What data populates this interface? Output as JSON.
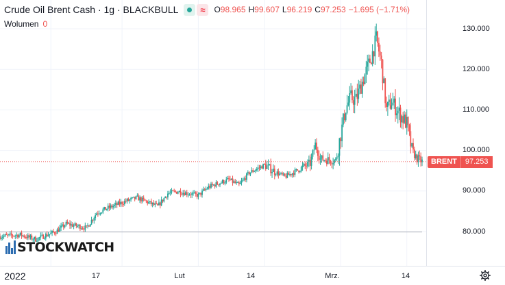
{
  "legend": {
    "title": "Crude Oil Brent Cash · 1g · BLACKBULL",
    "icons": [
      "status-dot-icon",
      "wave-icon"
    ],
    "ohlc": [
      {
        "k": "O",
        "v": "98.965"
      },
      {
        "k": "H",
        "v": "99.607"
      },
      {
        "k": "L",
        "v": "96.219"
      },
      {
        "k": "C",
        "v": "97.253"
      },
      {
        "k": "",
        "v": "−1.695 (−1.71%)"
      }
    ]
  },
  "volume": {
    "label": "Wolumen",
    "value": "0"
  },
  "price_tag": {
    "symbol": "BRENT",
    "price": "97.253"
  },
  "logo": {
    "text": "STOCKWATCH"
  },
  "colors": {
    "up": "#26a69a",
    "down": "#ef5350",
    "grid": "#f0f3fa",
    "axis_text": "#131722",
    "price_line": "#ef5350"
  },
  "chart_data": {
    "type": "candlestick",
    "title": "Crude Oil Brent Cash · 1g · BLACKBULL",
    "xlabel": "",
    "ylabel": "",
    "ylim": [
      75,
      135
    ],
    "y_ticks": [
      "130.000",
      "120.000",
      "110.000",
      "100.000",
      "90.000",
      "80.000"
    ],
    "y_tick_values": [
      130,
      120,
      110,
      100,
      90,
      80
    ],
    "x_ticks": [
      "2022",
      "17",
      "Lut",
      "14",
      "Mrz.",
      "14"
    ],
    "x_tick_dates": [
      "2022-01-03",
      "2022-01-17",
      "2022-02-01",
      "2022-02-14",
      "2022-03-01",
      "2022-03-14"
    ],
    "last_price": 97.253,
    "close_path": [
      {
        "date": "2021-12-24",
        "close": 78.8
      },
      {
        "date": "2021-12-28",
        "close": 79.2
      },
      {
        "date": "2021-12-31",
        "close": 78.1
      },
      {
        "date": "2022-01-04",
        "close": 80.0
      },
      {
        "date": "2022-01-06",
        "close": 81.9
      },
      {
        "date": "2022-01-10",
        "close": 80.9
      },
      {
        "date": "2022-01-12",
        "close": 84.6
      },
      {
        "date": "2022-01-14",
        "close": 85.7
      },
      {
        "date": "2022-01-18",
        "close": 87.6
      },
      {
        "date": "2022-01-20",
        "close": 88.3
      },
      {
        "date": "2022-01-24",
        "close": 86.2
      },
      {
        "date": "2022-01-26",
        "close": 89.4
      },
      {
        "date": "2022-01-28",
        "close": 89.9
      },
      {
        "date": "2022-02-01",
        "close": 88.9
      },
      {
        "date": "2022-02-03",
        "close": 91.0
      },
      {
        "date": "2022-02-07",
        "close": 92.8
      },
      {
        "date": "2022-02-09",
        "close": 91.4
      },
      {
        "date": "2022-02-11",
        "close": 94.5
      },
      {
        "date": "2022-02-14",
        "close": 96.4
      },
      {
        "date": "2022-02-16",
        "close": 94.8
      },
      {
        "date": "2022-02-18",
        "close": 93.5
      },
      {
        "date": "2022-02-21",
        "close": 95.4
      },
      {
        "date": "2022-02-23",
        "close": 96.8
      },
      {
        "date": "2022-02-24",
        "close": 101.5
      },
      {
        "date": "2022-02-25",
        "close": 97.9
      },
      {
        "date": "2022-02-28",
        "close": 97.5
      },
      {
        "date": "2022-03-02",
        "close": 110.5
      },
      {
        "date": "2022-03-03",
        "close": 113.0
      },
      {
        "date": "2022-03-04",
        "close": 112.5
      },
      {
        "date": "2022-03-07",
        "close": 123.0
      },
      {
        "date": "2022-03-08",
        "close": 127.5
      },
      {
        "date": "2022-03-09",
        "close": 121.5
      },
      {
        "date": "2022-03-10",
        "close": 110.0
      },
      {
        "date": "2022-03-11",
        "close": 112.0
      },
      {
        "date": "2022-03-14",
        "close": 106.5
      },
      {
        "date": "2022-03-15",
        "close": 99.9
      },
      {
        "date": "2022-03-16",
        "close": 98.0
      },
      {
        "date": "2022-03-17",
        "close": 97.253
      }
    ]
  }
}
